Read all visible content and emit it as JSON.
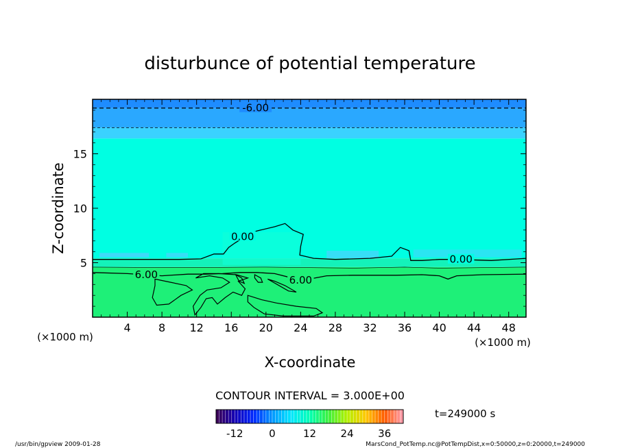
{
  "chart_data": {
    "type": "heatmap",
    "title": "disturbunce of potential temperature",
    "xlabel": "X-coordinate",
    "ylabel": "Z-coordinate",
    "x_unit_left": "(×1000 m)",
    "x_unit_right": "(×1000 m)",
    "xlim": [
      0,
      50
    ],
    "ylim": [
      0,
      20
    ],
    "x_ticks": [
      "4",
      "8",
      "12",
      "16",
      "20",
      "24",
      "28",
      "32",
      "36",
      "40",
      "44",
      "48"
    ],
    "x_tick_values": [
      4,
      8,
      12,
      16,
      20,
      24,
      28,
      32,
      36,
      40,
      44,
      48
    ],
    "y_ticks": [
      "5",
      "10",
      "15"
    ],
    "y_tick_values": [
      5,
      10,
      15
    ],
    "grid": false,
    "contour_interval_label": "CONTOUR INTERVAL = 3.000E+00",
    "time_label": "t=249000 s",
    "colorbar": {
      "min": -18,
      "max": 42,
      "tick_labels": [
        "-12",
        "0",
        "12",
        "24",
        "36"
      ],
      "tick_values": [
        -12,
        0,
        12,
        24,
        36
      ]
    },
    "bands": [
      {
        "z_min": 19.2,
        "z_max": 20.0,
        "value": -9,
        "color": "#1e8cff"
      },
      {
        "z_min": 17.4,
        "z_max": 19.2,
        "value": -6,
        "color": "#2aa8ff"
      },
      {
        "z_min": 16.4,
        "z_max": 17.4,
        "value": -3,
        "color": "#3ad2ff"
      },
      {
        "z_min": 5.4,
        "z_max": 16.4,
        "value": 0,
        "color": "#00ffe2"
      },
      {
        "z_min": 4.6,
        "z_max": 5.4,
        "value": 3,
        "color": "#14f2ba"
      },
      {
        "z_min": 0.0,
        "z_max": 4.6,
        "value": 6,
        "color": "#1ef078"
      }
    ],
    "contour_labels": [
      {
        "text": "-6.00",
        "x": 18.8,
        "z": 19.2
      },
      {
        "text": "0.00",
        "x": 17.3,
        "z": 7.4
      },
      {
        "text": "0.00",
        "x": 42.5,
        "z": 5.3
      },
      {
        "text": "6.00",
        "x": 6.2,
        "z": 3.9
      },
      {
        "text": "6.00",
        "x": 24.0,
        "z": 3.4
      }
    ]
  },
  "footer": {
    "left": "/usr/bin/gpview   2009-01-28",
    "right": "MarsCond_PotTemp.nc@PotTempDist,x=0:50000,z=0:20000,t=249000"
  }
}
